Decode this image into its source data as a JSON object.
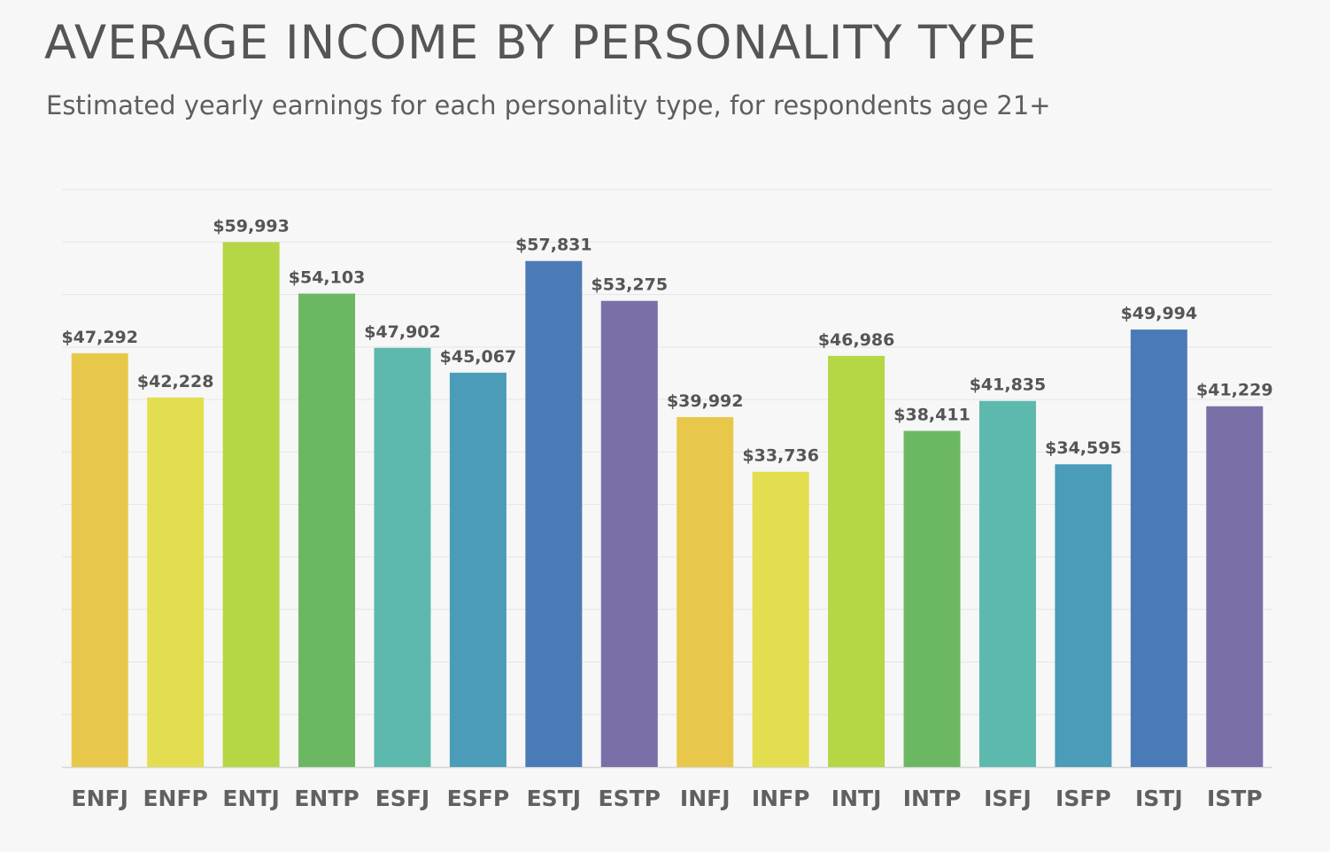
{
  "chart_data": {
    "type": "bar",
    "title": "AVERAGE INCOME BY PERSONALITY TYPE",
    "subtitle": "Estimated yearly earnings for each personality type, for respondents age 21+",
    "categories": [
      "ENFJ",
      "ENFP",
      "ENTJ",
      "ENTP",
      "ESFJ",
      "ESFP",
      "ESTJ",
      "ESTP",
      "INFJ",
      "INFP",
      "INTJ",
      "INTP",
      "ISFJ",
      "ISFP",
      "ISTJ",
      "ISTP"
    ],
    "values": [
      47292,
      42228,
      59993,
      54103,
      47902,
      45067,
      57831,
      53275,
      39992,
      33736,
      46986,
      38411,
      41835,
      34595,
      49994,
      41229
    ],
    "value_labels": [
      "$47,292",
      "$42,228",
      "$59,993",
      "$54,103",
      "$47,902",
      "$45,067",
      "$57,831",
      "$53,275",
      "$39,992",
      "$33,736",
      "$46,986",
      "$38,411",
      "$41,835",
      "$34,595",
      "$49,994",
      "$41,229"
    ],
    "colors": [
      "#e8c84a",
      "#e2de4f",
      "#b5d645",
      "#6cb862",
      "#5db8ad",
      "#4a9cb8",
      "#4b7bb6",
      "#7a6fa6",
      "#e8c84a",
      "#e2de4f",
      "#b5d645",
      "#6cb862",
      "#5db8ad",
      "#4a9cb8",
      "#4b7bb6",
      "#7a6fa6"
    ],
    "ylim": [
      0,
      66000
    ],
    "y_grid_step": 6000,
    "grid": true,
    "xlabel": "",
    "ylabel": ""
  }
}
